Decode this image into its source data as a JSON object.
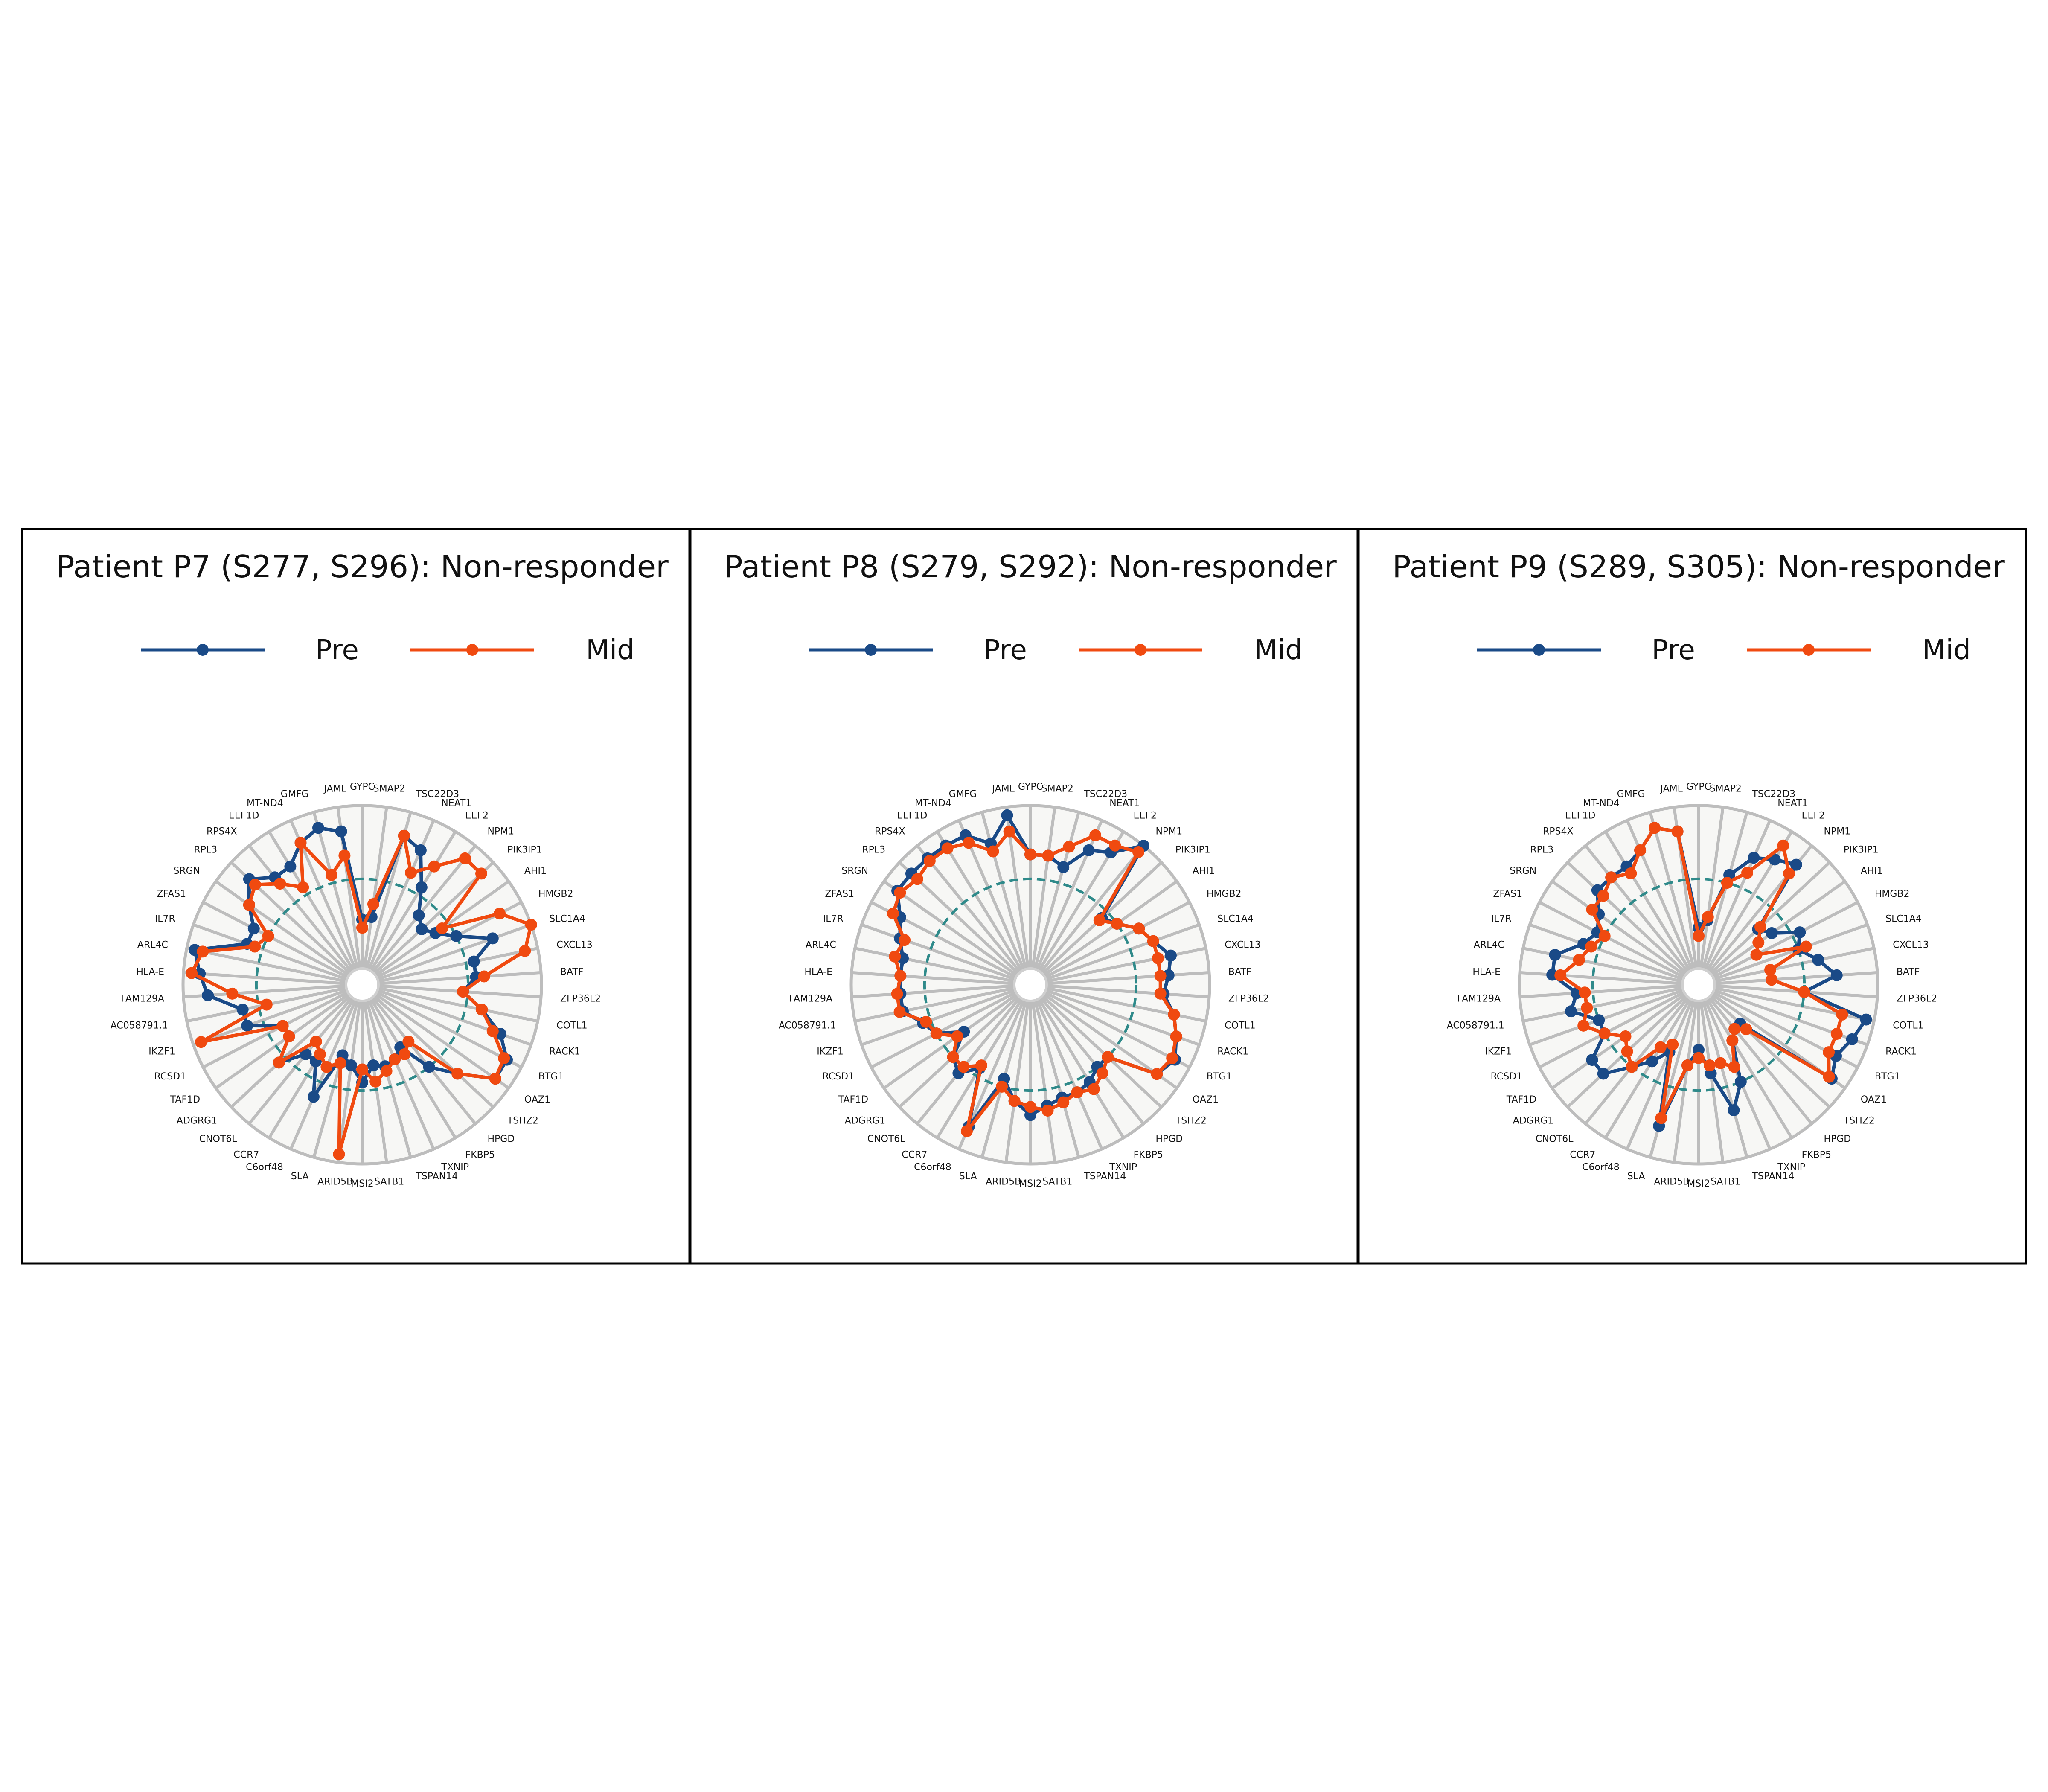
{
  "chart_data": [
    {
      "type": "radar",
      "title": "Patient P7 (S277, S296): Non-responder",
      "categories": [
        "GYPC",
        "SMAP2",
        "TSC22D3",
        "NEAT1",
        "EEF2",
        "NPM1",
        "PIK3IP1",
        "AHI1",
        "HMGB2",
        "SLC1A4",
        "CXCL13",
        "BATF",
        "ZFP36L2",
        "COTL1",
        "RACK1",
        "BTG1",
        "OAZ1",
        "TSHZ2",
        "HPGD",
        "FKBP5",
        "TXNIP",
        "TSPAN14",
        "SATB1",
        "MSI2",
        "ARID5B",
        "SLA",
        "C6orf48",
        "CCR7",
        "CNOT6L",
        "ADGRG1",
        "TAF1D",
        "RCSD1",
        "IKZF1",
        "AC058791.1",
        "FAM129A",
        "HLA-E",
        "ARL4C",
        "IL7R",
        "ZFAS1",
        "SRGN",
        "RPL3",
        "RPS4X",
        "EEF1D",
        "MT-ND4",
        "GMFG",
        "JAML"
      ],
      "rlim": [
        0,
        1
      ],
      "reference_circle": 0.55,
      "series": [
        {
          "name": "Pre",
          "color": "#1a4a87",
          "values": [
            0.3,
            0.32,
            0.85,
            0.8,
            0.6,
            0.45,
            0.4,
            0.45,
            0.55,
            0.75,
            0.6,
            0.6,
            0.52,
            0.65,
            0.8,
            0.9,
            0.9,
            0.7,
            0.55,
            0.35,
            0.4,
            0.42,
            0.4,
            0.5,
            0.4,
            0.35,
            0.65,
            0.45,
            0.45,
            0.6,
            0.45,
            0.45,
            0.65,
            0.65,
            0.85,
            0.9,
            0.95,
            0.65,
            0.65,
            0.75,
            0.85,
            0.75,
            0.75,
            0.85,
            0.9,
            0.85
          ]
        },
        {
          "name": "Mid",
          "color": "#f04a10",
          "values": [
            0.25,
            0.4,
            0.85,
            0.65,
            0.75,
            0.9,
            0.9,
            0.5,
            0.85,
            1.0,
            0.92,
            0.65,
            0.52,
            0.65,
            0.75,
            0.88,
            0.9,
            0.7,
            0.35,
            0.4,
            0.4,
            0.45,
            0.5,
            0.42,
            0.95,
            0.4,
            0.45,
            0.4,
            0.35,
            0.6,
            0.45,
            0.45,
            0.95,
            0.5,
            0.7,
            0.95,
            0.9,
            0.6,
            0.55,
            0.75,
            0.8,
            0.7,
            0.6,
            0.85,
            0.6,
            0.7
          ]
        }
      ]
    },
    {
      "type": "radar",
      "title": "Patient P8 (S279, S292): Non-responder",
      "categories": [
        "GYPC",
        "SMAP2",
        "TSC22D3",
        "NEAT1",
        "EEF2",
        "NPM1",
        "PIK3IP1",
        "AHI1",
        "HMGB2",
        "SLC1A4",
        "CXCL13",
        "BATF",
        "ZFP36L2",
        "COTL1",
        "RACK1",
        "BTG1",
        "OAZ1",
        "TSHZ2",
        "HPGD",
        "FKBP5",
        "TXNIP",
        "TSPAN14",
        "SATB1",
        "MSI2",
        "ARID5B",
        "SLA",
        "C6orf48",
        "CCR7",
        "CNOT6L",
        "ADGRG1",
        "TAF1D",
        "RCSD1",
        "IKZF1",
        "AC058791.1",
        "FAM129A",
        "HLA-E",
        "ARL4C",
        "IL7R",
        "ZFAS1",
        "SRGN",
        "RPL3",
        "RPS4X",
        "EEF1D",
        "MT-ND4",
        "GMFG",
        "JAML"
      ],
      "rlim": [
        0,
        1
      ],
      "reference_circle": 0.55,
      "series": [
        {
          "name": "Pre",
          "color": "#1a4a87",
          "values": [
            0.7,
            0.7,
            0.65,
            0.8,
            0.85,
            1.0,
            0.5,
            0.55,
            0.65,
            0.7,
            0.78,
            0.75,
            0.72,
            0.8,
            0.85,
            0.9,
            0.85,
            0.55,
            0.55,
            0.6,
            0.62,
            0.62,
            0.65,
            0.7,
            0.62,
            0.5,
            0.85,
            0.5,
            0.6,
            0.55,
            0.4,
            0.55,
            0.6,
            0.7,
            0.7,
            0.7,
            0.7,
            0.75,
            0.8,
            0.9,
            0.9,
            0.9,
            0.9,
            0.9,
            0.8,
            0.95
          ]
        },
        {
          "name": "Mid",
          "color": "#f04a10",
          "values": [
            0.7,
            0.7,
            0.78,
            0.9,
            0.9,
            0.95,
            0.48,
            0.55,
            0.65,
            0.7,
            0.7,
            0.7,
            0.7,
            0.8,
            0.85,
            0.88,
            0.85,
            0.55,
            0.6,
            0.65,
            0.62,
            0.65,
            0.68,
            0.65,
            0.62,
            0.55,
            0.88,
            0.48,
            0.55,
            0.55,
            0.45,
            0.55,
            0.58,
            0.72,
            0.72,
            0.7,
            0.75,
            0.72,
            0.85,
            0.88,
            0.85,
            0.88,
            0.88,
            0.85,
            0.75,
            0.85
          ]
        }
      ]
    },
    {
      "type": "radar",
      "title": "Patient P9 (S289, S305): Non-responder",
      "categories": [
        "GYPC",
        "SMAP2",
        "TSC22D3",
        "NEAT1",
        "EEF2",
        "NPM1",
        "PIK3IP1",
        "AHI1",
        "HMGB2",
        "SLC1A4",
        "CXCL13",
        "BATF",
        "ZFP36L2",
        "COTL1",
        "RACK1",
        "BTG1",
        "OAZ1",
        "TSHZ2",
        "HPGD",
        "FKBP5",
        "TXNIP",
        "TSPAN14",
        "SATB1",
        "MSI2",
        "ARID5B",
        "SLA",
        "C6orf48",
        "CCR7",
        "CNOT6L",
        "ADGRG1",
        "TAF1D",
        "RCSD1",
        "IKZF1",
        "AC058791.1",
        "FAM129A",
        "HLA-E",
        "ARL4C",
        "IL7R",
        "ZFAS1",
        "SRGN",
        "RPL3",
        "RPS4X",
        "EEF1D",
        "MT-ND4",
        "GMFG",
        "JAML"
      ],
      "rlim": [
        0,
        1
      ],
      "reference_circle": 0.55,
      "series": [
        {
          "name": "Pre",
          "color": "#1a4a87",
          "values": [
            0.25,
            0.3,
            0.6,
            0.75,
            0.8,
            0.85,
            0.4,
            0.45,
            0.6,
            0.55,
            0.65,
            0.75,
            0.55,
            0.95,
            0.9,
            0.85,
            0.9,
            0.25,
            0.25,
            0.3,
            0.55,
            0.7,
            0.45,
            0.3,
            0.4,
            0.8,
            0.35,
            0.45,
            0.55,
            0.7,
            0.7,
            0.55,
            0.55,
            0.7,
            0.65,
            0.8,
            0.8,
            0.65,
            0.6,
            0.65,
            0.75,
            0.75,
            0.75,
            0.8,
            0.9,
            0.85
          ]
        },
        {
          "name": "Mid",
          "color": "#f04a10",
          "values": [
            0.2,
            0.32,
            0.55,
            0.65,
            0.9,
            0.78,
            0.42,
            0.35,
            0.3,
            0.6,
            0.35,
            0.35,
            0.55,
            0.8,
            0.8,
            0.8,
            0.88,
            0.3,
            0.25,
            0.3,
            0.45,
            0.4,
            0.4,
            0.35,
            0.4,
            0.75,
            0.3,
            0.35,
            0.55,
            0.5,
            0.45,
            0.55,
            0.65,
            0.6,
            0.6,
            0.75,
            0.65,
            0.6,
            0.55,
            0.7,
            0.7,
            0.75,
            0.7,
            0.8,
            0.9,
            0.85
          ]
        }
      ]
    }
  ]
}
